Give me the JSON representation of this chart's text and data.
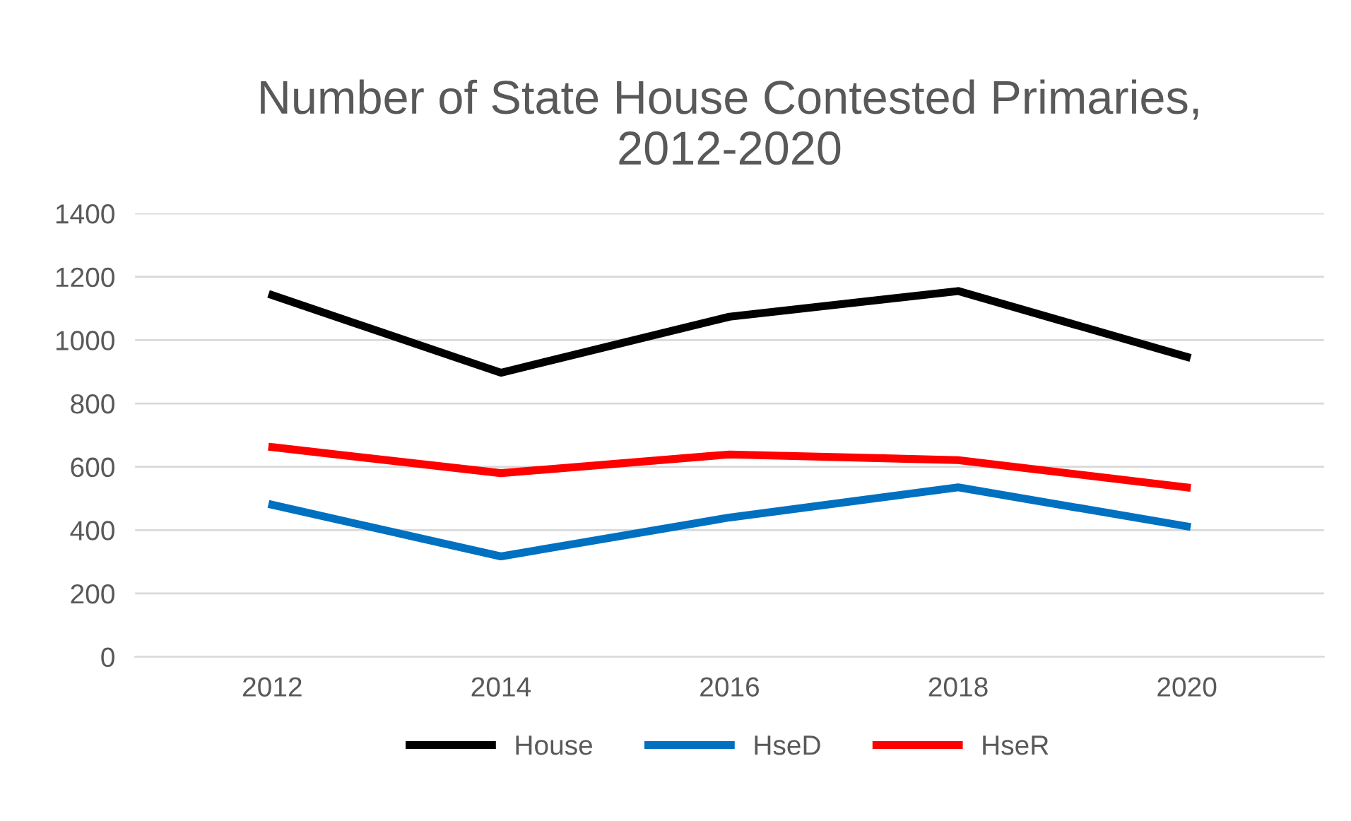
{
  "chart_data": {
    "type": "line",
    "title": "Number of State House Contested Primaries,\n2012-2020",
    "categories": [
      "2012",
      "2014",
      "2016",
      "2018",
      "2020"
    ],
    "series": [
      {
        "name": "House",
        "color": "#000000",
        "values": [
          1142,
          897,
          1074,
          1155,
          947
        ]
      },
      {
        "name": "HseD",
        "color": "#0070c0",
        "values": [
          480,
          317,
          440,
          535,
          412
        ]
      },
      {
        "name": "HseR",
        "color": "#ff0000",
        "values": [
          662,
          580,
          639,
          621,
          535
        ]
      }
    ],
    "ylim": [
      0,
      1400
    ],
    "yticks": [
      0,
      200,
      400,
      600,
      800,
      1000,
      1200,
      1400
    ],
    "grid": "y",
    "legend": "bottom",
    "marker": "none",
    "line_style": "solid"
  }
}
